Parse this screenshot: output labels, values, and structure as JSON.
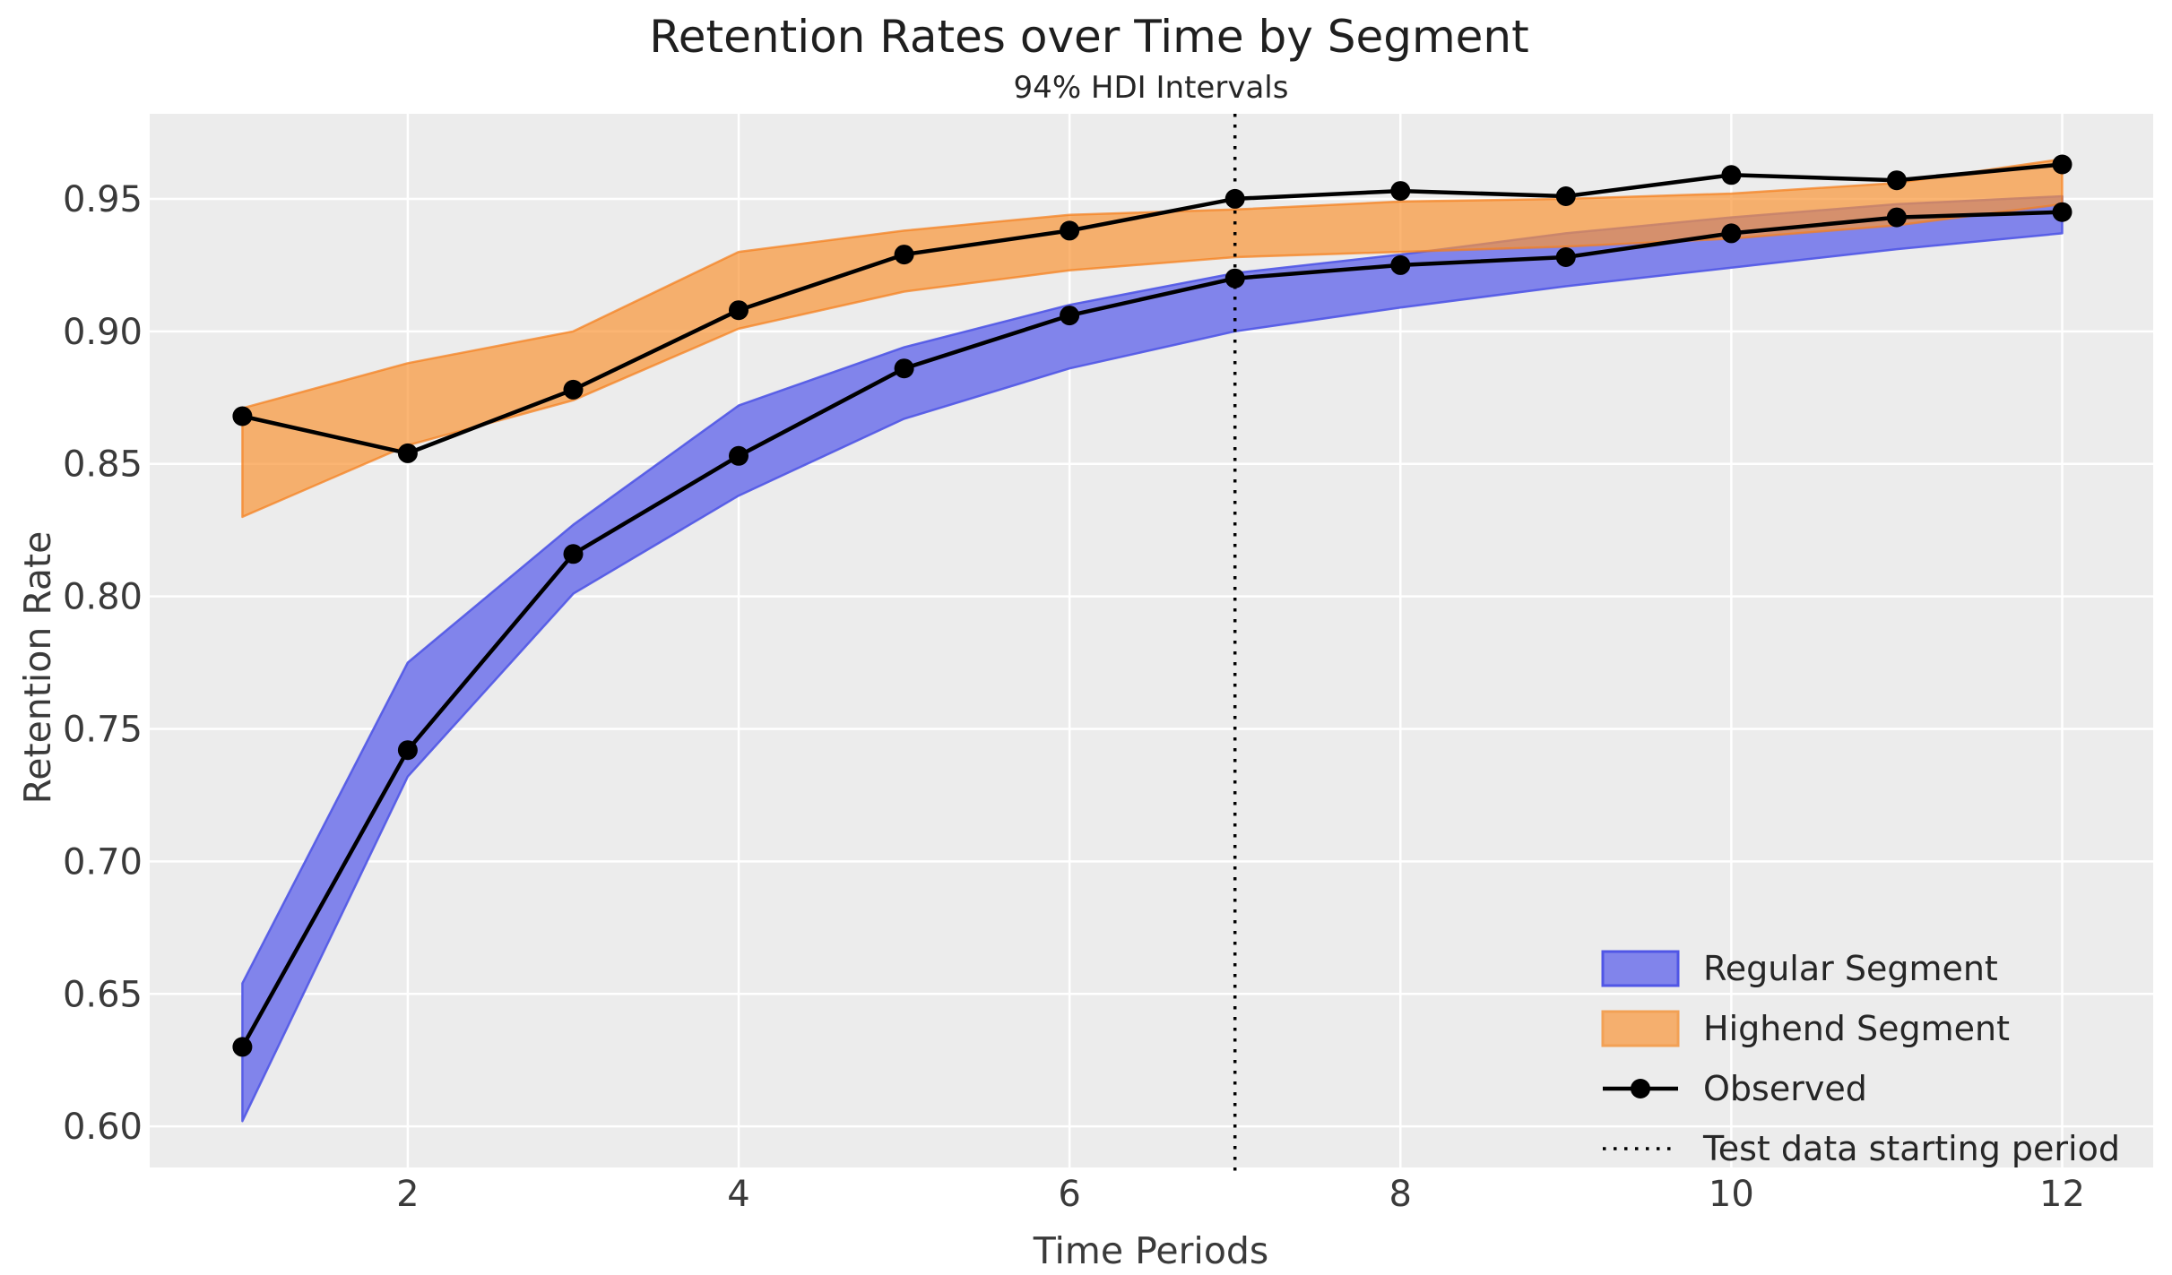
{
  "title": "Retention Rates over Time by Segment",
  "subtitle": "94% HDI Intervals",
  "chart_data": {
    "type": "line",
    "title": "Retention Rates over Time by Segment",
    "subtitle": "94% HDI Intervals",
    "xlabel": "Time Periods",
    "ylabel": "Retention Rate",
    "x": [
      1,
      2,
      3,
      4,
      5,
      6,
      7,
      8,
      9,
      10,
      11,
      12
    ],
    "x_ticks": [
      2,
      4,
      6,
      8,
      10,
      12
    ],
    "y_ticks": [
      {
        "v": 0.95,
        "label": "0.95"
      },
      {
        "v": 0.9,
        "label": "0.90"
      },
      {
        "v": 0.85,
        "label": "0.85"
      },
      {
        "v": 0.8,
        "label": "0.80"
      },
      {
        "v": 0.75,
        "label": "0.75"
      },
      {
        "v": 0.7,
        "label": "0.70"
      },
      {
        "v": 0.65,
        "label": "0.65"
      },
      {
        "v": 0.6,
        "label": "0.60"
      }
    ],
    "xlim": [
      0.44,
      12.55
    ],
    "ylim": [
      0.5845,
      0.9821
    ],
    "grid": true,
    "legend_position": "lower right",
    "series": [
      {
        "name": "Observed Regular",
        "values": [
          0.63,
          0.742,
          0.816,
          0.853,
          0.886,
          0.906,
          0.92,
          0.925,
          0.928,
          0.937,
          0.943,
          0.945
        ]
      },
      {
        "name": "Observed Highend",
        "values": [
          0.868,
          0.854,
          0.878,
          0.908,
          0.929,
          0.938,
          0.95,
          0.953,
          0.951,
          0.959,
          0.957,
          0.963
        ]
      }
    ],
    "bands": [
      {
        "name": "Regular Segment 94% HDI",
        "lo": [
          0.602,
          0.732,
          0.801,
          0.838,
          0.867,
          0.886,
          0.9,
          0.909,
          0.917,
          0.924,
          0.931,
          0.937
        ],
        "hi": [
          0.654,
          0.775,
          0.827,
          0.872,
          0.894,
          0.91,
          0.922,
          0.929,
          0.937,
          0.943,
          0.948,
          0.951
        ],
        "fill": "#8184EB",
        "edge": "#5056E6",
        "fill_opacity": 1,
        "edge_opacity": 0.9
      },
      {
        "name": "Highend Segment 94% HDI",
        "lo": [
          0.83,
          0.857,
          0.874,
          0.901,
          0.915,
          0.923,
          0.928,
          0.93,
          0.932,
          0.935,
          0.94,
          0.948
        ],
        "hi": [
          0.871,
          0.888,
          0.9,
          0.93,
          0.938,
          0.944,
          0.946,
          0.949,
          0.95,
          0.952,
          0.956,
          0.965
        ],
        "fill": "rgb(249,149,56)",
        "edge": "rgb(245,125,25)",
        "fill_opacity": 0.7,
        "edge_opacity": 0.7
      }
    ],
    "vline": {
      "x": 7,
      "style": "dotted",
      "color": "#000000"
    },
    "legend": [
      {
        "type": "patch",
        "label": "Regular Segment",
        "fill": "#8184EB",
        "edge": "#5056E6"
      },
      {
        "type": "patch",
        "label": "Highend Segment",
        "fill": "#F5AF6E",
        "edge": "#F2A155"
      },
      {
        "type": "line-marker",
        "label": "Observed",
        "color": "#000000"
      },
      {
        "type": "dotted-line",
        "label": "Test data starting period",
        "color": "#000000"
      }
    ],
    "colors": {
      "plot_bg": "#ECECEC",
      "grid": "#FFFFFF",
      "observed": "#000000",
      "tick_text": "#3a3a3a",
      "title_text": "#1f1f1f"
    }
  }
}
